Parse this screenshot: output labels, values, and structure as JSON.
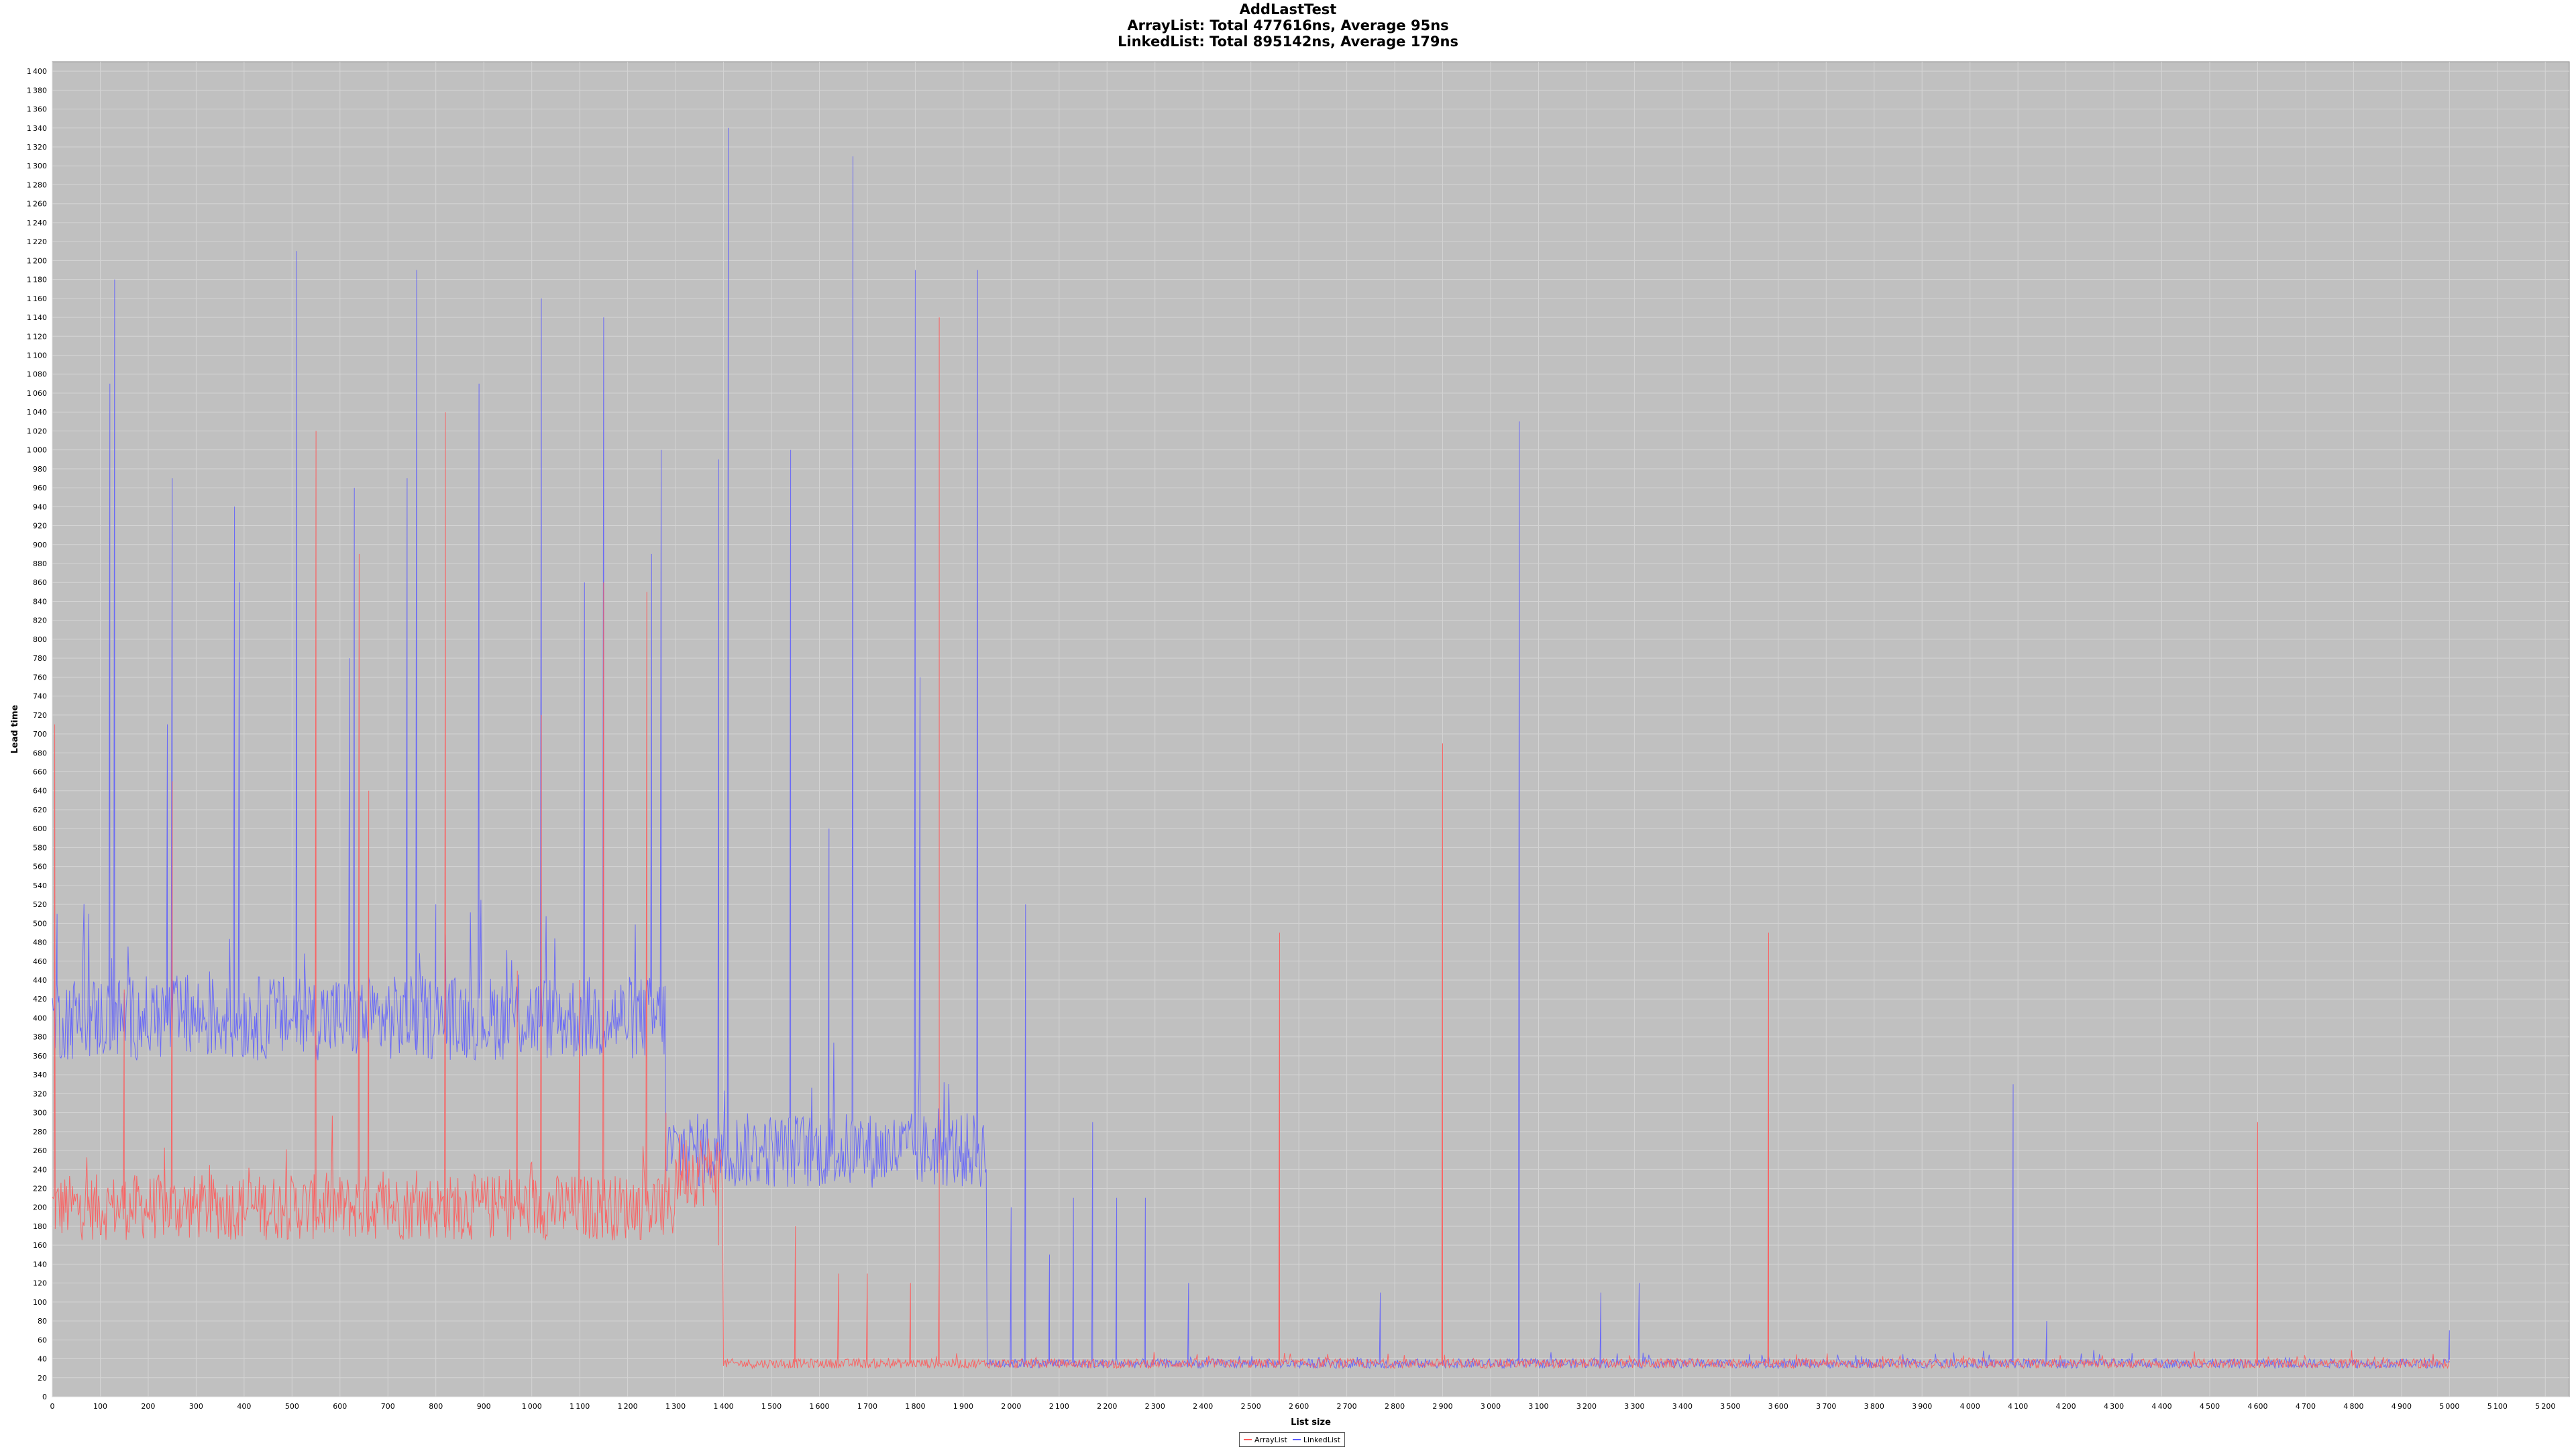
{
  "chart_data": {
    "type": "line",
    "title": "AddLastTest",
    "subtitles": [
      "ArrayList: Total 477616ns, Average 95ns",
      "LinkedList: Total 895142ns, Average 179ns"
    ],
    "xlabel": "List size",
    "ylabel": "Lead time",
    "xlim": [
      0,
      5250
    ],
    "ylim": [
      0,
      1410
    ],
    "x_ticks": [
      0,
      100,
      200,
      300,
      400,
      500,
      600,
      700,
      800,
      900,
      1000,
      1100,
      1200,
      1300,
      1400,
      1500,
      1600,
      1700,
      1800,
      1900,
      2000,
      2100,
      2200,
      2300,
      2400,
      2500,
      2600,
      2700,
      2800,
      2900,
      3000,
      3100,
      3200,
      3300,
      3400,
      3500,
      3600,
      3700,
      3800,
      3900,
      4000,
      4100,
      4200,
      4300,
      4400,
      4500,
      4600,
      4700,
      4800,
      4900,
      5000,
      5100,
      5200
    ],
    "y_ticks": [
      0,
      20,
      40,
      60,
      80,
      100,
      120,
      140,
      160,
      180,
      200,
      220,
      240,
      260,
      280,
      300,
      320,
      340,
      360,
      380,
      400,
      420,
      440,
      460,
      480,
      500,
      520,
      540,
      560,
      580,
      600,
      620,
      640,
      660,
      680,
      700,
      720,
      740,
      760,
      780,
      800,
      820,
      840,
      860,
      880,
      900,
      920,
      940,
      960,
      980,
      1000,
      1020,
      1040,
      1060,
      1080,
      1100,
      1120,
      1140,
      1160,
      1180,
      1200,
      1220,
      1240,
      1260,
      1280,
      1300,
      1320,
      1340,
      1360,
      1380,
      1400
    ],
    "grid": true,
    "legend_position": "bottom-center",
    "series": [
      {
        "name": "ArrayList",
        "color": "#ff5a5a",
        "x_range": [
          0,
          5000
        ],
        "regimes": [
          {
            "x": [
              0,
              1300
            ],
            "base": 200,
            "noise": 35
          },
          {
            "x": [
              1300,
              1400
            ],
            "base": 240,
            "noise": 40
          },
          {
            "x": [
              1400,
              5000
            ],
            "base": 35,
            "noise": 5
          }
        ],
        "spikes": [
          [
            5,
            710
          ],
          [
            150,
            430
          ],
          [
            250,
            650
          ],
          [
            550,
            1020
          ],
          [
            640,
            890
          ],
          [
            660,
            640
          ],
          [
            820,
            1040
          ],
          [
            970,
            450
          ],
          [
            1020,
            720
          ],
          [
            1100,
            440
          ],
          [
            1150,
            860
          ],
          [
            1240,
            850
          ],
          [
            1280,
            300
          ],
          [
            1390,
            160
          ],
          [
            1550,
            180
          ],
          [
            1640,
            130
          ],
          [
            1700,
            130
          ],
          [
            1790,
            120
          ],
          [
            1850,
            1140
          ],
          [
            1850,
            140
          ],
          [
            2560,
            490
          ],
          [
            2900,
            690
          ],
          [
            3580,
            490
          ],
          [
            4600,
            290
          ]
        ]
      },
      {
        "name": "LinkedList",
        "color": "#5a5aff",
        "x_range": [
          0,
          5000
        ],
        "regimes": [
          {
            "x": [
              0,
              1280
            ],
            "base": 400,
            "noise": 45
          },
          {
            "x": [
              1280,
              1950
            ],
            "base": 260,
            "noise": 40
          },
          {
            "x": [
              1950,
              5000
            ],
            "base": 35,
            "noise": 5
          }
        ],
        "spikes": [
          [
            10,
            510
          ],
          [
            120,
            1070
          ],
          [
            130,
            1180
          ],
          [
            250,
            970
          ],
          [
            240,
            710
          ],
          [
            380,
            940
          ],
          [
            390,
            860
          ],
          [
            510,
            1210
          ],
          [
            630,
            960
          ],
          [
            620,
            780
          ],
          [
            740,
            970
          ],
          [
            760,
            1190
          ],
          [
            800,
            520
          ],
          [
            890,
            1070
          ],
          [
            1020,
            1160
          ],
          [
            1110,
            860
          ],
          [
            1150,
            1140
          ],
          [
            1250,
            890
          ],
          [
            1270,
            1000
          ],
          [
            1390,
            990
          ],
          [
            1410,
            1340
          ],
          [
            1540,
            1000
          ],
          [
            1620,
            600
          ],
          [
            1670,
            1310
          ],
          [
            1800,
            1190
          ],
          [
            1810,
            760
          ],
          [
            1930,
            1190
          ],
          [
            2030,
            520
          ],
          [
            2000,
            200
          ],
          [
            2080,
            150
          ],
          [
            2130,
            210
          ],
          [
            2170,
            290
          ],
          [
            2220,
            210
          ],
          [
            2280,
            210
          ],
          [
            2370,
            120
          ],
          [
            2770,
            110
          ],
          [
            3060,
            1030
          ],
          [
            3230,
            110
          ],
          [
            3310,
            120
          ],
          [
            4090,
            330
          ],
          [
            4160,
            80
          ],
          [
            5000,
            70
          ]
        ]
      }
    ]
  },
  "legend": {
    "items": [
      {
        "label": "ArrayList",
        "color": "#ff5a5a"
      },
      {
        "label": "LinkedList",
        "color": "#5a5aff"
      }
    ]
  }
}
